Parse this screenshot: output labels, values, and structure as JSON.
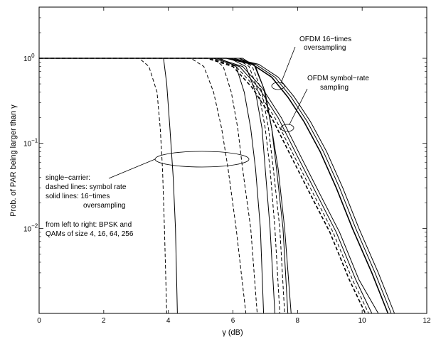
{
  "chart_data": {
    "type": "line",
    "title": "",
    "xlabel": "γ (dB)",
    "ylabel": "Prob. of PAR being larger than γ",
    "x_scale": "linear",
    "y_scale": "log",
    "xlim": [
      0,
      12
    ],
    "ylim": [
      0.001,
      4
    ],
    "grid": false,
    "x_ticks": [
      {
        "value": 0,
        "label": "0"
      },
      {
        "value": 2,
        "label": "2"
      },
      {
        "value": 4,
        "label": "4"
      },
      {
        "value": 6,
        "label": "6"
      },
      {
        "value": 8,
        "label": "8"
      },
      {
        "value": 10,
        "label": "10"
      },
      {
        "value": 12,
        "label": "12"
      }
    ],
    "y_ticks": [
      {
        "value": 1,
        "base": "10",
        "exp": "0"
      },
      {
        "value": 0.1,
        "base": "10",
        "exp": "−1"
      },
      {
        "value": 0.01,
        "base": "10",
        "exp": "−2"
      }
    ],
    "series": [
      {
        "dash": true,
        "points": [
          [
            0,
            1
          ],
          [
            3.1,
            1
          ],
          [
            3.4,
            0.8
          ],
          [
            3.65,
            0.4
          ],
          [
            3.75,
            0.15
          ],
          [
            3.82,
            0.05
          ],
          [
            3.88,
            0.01
          ],
          [
            3.95,
            0.001
          ]
        ]
      },
      {
        "dash": false,
        "points": [
          [
            0,
            1
          ],
          [
            3.85,
            1
          ],
          [
            3.95,
            0.5
          ],
          [
            4.05,
            0.15
          ],
          [
            4.15,
            0.04
          ],
          [
            4.22,
            0.01
          ],
          [
            4.28,
            0.001
          ]
        ]
      },
      {
        "dash": true,
        "points": [
          [
            0,
            1
          ],
          [
            4.7,
            1
          ],
          [
            5.1,
            0.8
          ],
          [
            5.4,
            0.4
          ],
          [
            5.65,
            0.15
          ],
          [
            5.85,
            0.05
          ],
          [
            6.1,
            0.01
          ],
          [
            6.4,
            0.001
          ]
        ]
      },
      {
        "dash": true,
        "points": [
          [
            0,
            1
          ],
          [
            5.4,
            1
          ],
          [
            5.7,
            0.8
          ],
          [
            5.95,
            0.4
          ],
          [
            6.15,
            0.15
          ],
          [
            6.3,
            0.05
          ],
          [
            6.55,
            0.01
          ],
          [
            6.75,
            0.001
          ]
        ]
      },
      {
        "dash": false,
        "points": [
          [
            0,
            1
          ],
          [
            5.6,
            1
          ],
          [
            6.1,
            0.8
          ],
          [
            6.35,
            0.4
          ],
          [
            6.55,
            0.15
          ],
          [
            6.7,
            0.05
          ],
          [
            6.85,
            0.01
          ],
          [
            6.95,
            0.001
          ]
        ]
      },
      {
        "dash": false,
        "points": [
          [
            0,
            1
          ],
          [
            5.9,
            1
          ],
          [
            6.4,
            0.8
          ],
          [
            6.7,
            0.4
          ],
          [
            6.9,
            0.15
          ],
          [
            7.0,
            0.05
          ],
          [
            7.15,
            0.01
          ],
          [
            7.3,
            0.001
          ]
        ]
      },
      {
        "dash": true,
        "points": [
          [
            0,
            1
          ],
          [
            6.1,
            1
          ],
          [
            6.5,
            0.8
          ],
          [
            6.8,
            0.4
          ],
          [
            7.0,
            0.15
          ],
          [
            7.15,
            0.05
          ],
          [
            7.3,
            0.01
          ],
          [
            7.45,
            0.001
          ]
        ]
      },
      {
        "dash": true,
        "points": [
          [
            0,
            1
          ],
          [
            6.2,
            1
          ],
          [
            6.6,
            0.8
          ],
          [
            6.9,
            0.4
          ],
          [
            7.1,
            0.15
          ],
          [
            7.25,
            0.05
          ],
          [
            7.45,
            0.01
          ],
          [
            7.6,
            0.001
          ]
        ]
      },
      {
        "dash": false,
        "points": [
          [
            0,
            1
          ],
          [
            6.3,
            1
          ],
          [
            6.7,
            0.8
          ],
          [
            7.0,
            0.4
          ],
          [
            7.2,
            0.15
          ],
          [
            7.35,
            0.05
          ],
          [
            7.55,
            0.01
          ],
          [
            7.7,
            0.001
          ]
        ]
      },
      {
        "dash": false,
        "points": [
          [
            0,
            1
          ],
          [
            6.2,
            1
          ],
          [
            6.65,
            0.85
          ],
          [
            6.95,
            0.45
          ],
          [
            7.2,
            0.15
          ],
          [
            7.4,
            0.05
          ],
          [
            7.6,
            0.01
          ],
          [
            7.8,
            0.001
          ]
        ]
      },
      {
        "dash": true,
        "bold": true,
        "points": [
          [
            0,
            1
          ],
          [
            5.2,
            1
          ],
          [
            6.0,
            0.8
          ],
          [
            6.6,
            0.45
          ],
          [
            7.2,
            0.2
          ],
          [
            7.8,
            0.07
          ],
          [
            8.4,
            0.025
          ],
          [
            9.0,
            0.009
          ],
          [
            9.6,
            0.0025
          ],
          [
            10.1,
            0.001
          ]
        ]
      },
      {
        "dash": true,
        "points": [
          [
            0,
            1
          ],
          [
            5.3,
            1
          ],
          [
            6.1,
            0.8
          ],
          [
            6.7,
            0.45
          ],
          [
            7.3,
            0.2
          ],
          [
            7.9,
            0.07
          ],
          [
            8.5,
            0.025
          ],
          [
            9.1,
            0.009
          ],
          [
            9.7,
            0.0025
          ],
          [
            10.2,
            0.001
          ]
        ]
      },
      {
        "dash": false,
        "points": [
          [
            0,
            1
          ],
          [
            5.4,
            1
          ],
          [
            6.2,
            0.8
          ],
          [
            6.8,
            0.45
          ],
          [
            7.4,
            0.2
          ],
          [
            8.0,
            0.07
          ],
          [
            8.6,
            0.025
          ],
          [
            9.2,
            0.009
          ],
          [
            9.8,
            0.0025
          ],
          [
            10.3,
            0.001
          ]
        ]
      },
      {
        "dash": false,
        "points": [
          [
            0,
            1
          ],
          [
            5.5,
            1
          ],
          [
            6.3,
            0.8
          ],
          [
            6.9,
            0.45
          ],
          [
            7.5,
            0.2
          ],
          [
            8.1,
            0.07
          ],
          [
            8.7,
            0.025
          ],
          [
            9.3,
            0.009
          ],
          [
            9.9,
            0.0025
          ],
          [
            10.5,
            0.001
          ]
        ]
      },
      {
        "dash": false,
        "bold": true,
        "points": [
          [
            0,
            1
          ],
          [
            5.8,
            1
          ],
          [
            6.6,
            0.85
          ],
          [
            7.2,
            0.6
          ],
          [
            7.7,
            0.35
          ],
          [
            8.2,
            0.18
          ],
          [
            8.7,
            0.08
          ],
          [
            9.2,
            0.03
          ],
          [
            9.7,
            0.01
          ],
          [
            10.3,
            0.003
          ],
          [
            10.8,
            0.001
          ]
        ]
      },
      {
        "dash": false,
        "points": [
          [
            0,
            1
          ],
          [
            5.9,
            1
          ],
          [
            6.7,
            0.85
          ],
          [
            7.3,
            0.6
          ],
          [
            7.8,
            0.35
          ],
          [
            8.3,
            0.18
          ],
          [
            8.8,
            0.08
          ],
          [
            9.3,
            0.03
          ],
          [
            9.8,
            0.01
          ],
          [
            10.4,
            0.003
          ],
          [
            10.9,
            0.001
          ]
        ]
      },
      {
        "dash": false,
        "points": [
          [
            0,
            1
          ],
          [
            6.0,
            1
          ],
          [
            6.8,
            0.85
          ],
          [
            7.4,
            0.6
          ],
          [
            7.9,
            0.35
          ],
          [
            8.4,
            0.18
          ],
          [
            8.9,
            0.08
          ],
          [
            9.4,
            0.03
          ],
          [
            9.9,
            0.01
          ],
          [
            10.5,
            0.003
          ],
          [
            11.0,
            0.001
          ]
        ]
      }
    ],
    "annotations": {
      "ofdm16": [
        "OFDM 16−times",
        "oversampling"
      ],
      "ofdm_symbol": [
        "OFDM symbol−rate",
        "sampling"
      ],
      "single_carrier": [
        "single−carrier:",
        "dashed lines: symbol rate",
        "solid lines: 16−times",
        "oversampling"
      ],
      "order": [
        "from left to right: BPSK and",
        "QAMs of size 4, 16, 64, 256"
      ]
    }
  }
}
